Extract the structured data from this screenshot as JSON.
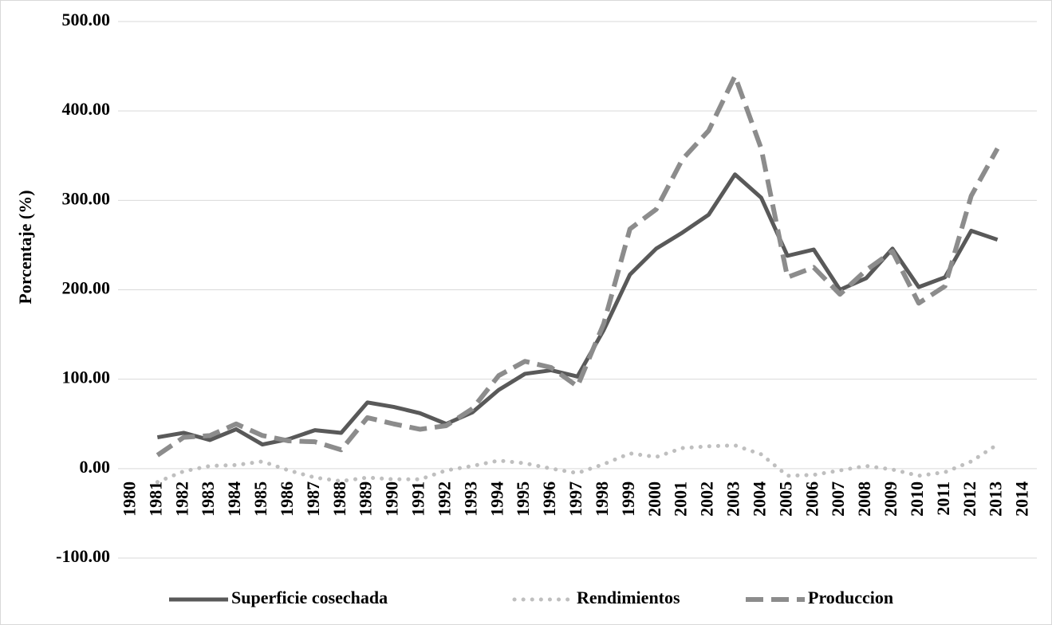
{
  "chart_data": {
    "type": "line",
    "y_label": "Porcentaje (%)",
    "categories": [
      "1980",
      "1981",
      "1982",
      "1983",
      "1984",
      "1985",
      "1986",
      "1987",
      "1988",
      "1989",
      "1990",
      "1991",
      "1992",
      "1993",
      "1994",
      "1995",
      "1996",
      "1997",
      "1998",
      "1999",
      "2000",
      "2001",
      "2002",
      "2003",
      "2004",
      "2005",
      "2006",
      "2007",
      "2008",
      "2009",
      "2010",
      "2011",
      "2012",
      "2013",
      "2014"
    ],
    "series": [
      {
        "name": "Superficie cosechada",
        "color": "#595959",
        "line_style": "solid",
        "values": [
          null,
          35,
          40,
          32,
          44,
          27,
          33,
          43,
          40,
          74,
          69,
          62,
          50,
          63,
          88,
          106,
          110,
          103,
          155,
          217,
          246,
          264,
          284,
          329,
          303,
          238,
          245,
          200,
          213,
          246,
          203,
          214,
          266,
          256,
          null
        ]
      },
      {
        "name": "Rendimientos",
        "color": "#bfbfbf",
        "line_style": "dot",
        "values": [
          null,
          -15,
          -3,
          3,
          4,
          8,
          -2,
          -10,
          -14,
          -10,
          -12,
          -12,
          -2,
          3,
          9,
          6,
          0,
          -5,
          5,
          17,
          13,
          23,
          25,
          26,
          16,
          -8,
          -7,
          -2,
          3,
          -1,
          -8,
          -4,
          8,
          27,
          null
        ]
      },
      {
        "name": "Produccion",
        "color": "#8c8c8c",
        "line_style": "dash",
        "values": [
          null,
          15,
          35,
          37,
          50,
          37,
          31,
          30,
          21,
          57,
          50,
          44,
          48,
          67,
          104,
          120,
          113,
          92,
          162,
          268,
          290,
          346,
          378,
          439,
          358,
          214,
          225,
          195,
          222,
          243,
          185,
          204,
          305,
          358,
          null
        ]
      }
    ],
    "ylim": [
      -100,
      500
    ],
    "yticks": [
      {
        "value": -100,
        "label": "-100.00"
      },
      {
        "value": 0,
        "label": "0.00"
      },
      {
        "value": 100,
        "label": "100.00"
      },
      {
        "value": 200,
        "label": "200.00"
      },
      {
        "value": 300,
        "label": "300.00"
      },
      {
        "value": 400,
        "label": "400.00"
      },
      {
        "value": 500,
        "label": "500.00"
      }
    ],
    "grid": true,
    "legend": "bottom"
  }
}
